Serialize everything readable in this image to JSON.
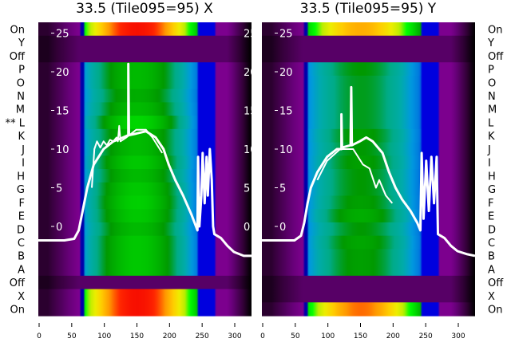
{
  "colors": {
    "line": "#ffffff",
    "background": "#ffffff",
    "text": "#000000"
  },
  "chart_data": [
    {
      "type": "heatmap",
      "title": "33.5 (Tile095=95) X",
      "row_labels_side": "left",
      "x_ticks": [
        0,
        50,
        100,
        150,
        200,
        250,
        300
      ],
      "xlim": [
        0,
        327
      ],
      "inner_y_ticks": [
        0,
        5,
        10,
        15,
        20,
        25
      ],
      "inner_ylim": [
        -11.5,
        26.5
      ],
      "rows": [
        {
          "label": "On",
          "peak": 0.88
        },
        {
          "label": "Y",
          "peak": 0
        },
        {
          "label": "Off",
          "peak": 0
        },
        {
          "label": "P",
          "peak": 0.5
        },
        {
          "label": "O",
          "peak": 0.5
        },
        {
          "label": "N",
          "peak": 0.48
        },
        {
          "label": "M",
          "peak": 0.5
        },
        {
          "label": "** L",
          "peak": 0.54
        },
        {
          "label": "K",
          "peak": 0.5
        },
        {
          "label": "J",
          "peak": 0.5
        },
        {
          "label": "I",
          "peak": 0.52
        },
        {
          "label": "H",
          "peak": 0.5
        },
        {
          "label": "G",
          "peak": 0.52
        },
        {
          "label": "F",
          "peak": 0.53
        },
        {
          "label": "E",
          "peak": 0.52
        },
        {
          "label": "D",
          "peak": 0.5
        },
        {
          "label": "C",
          "peak": 0.52
        },
        {
          "label": "B",
          "peak": 0.52
        },
        {
          "label": "A",
          "peak": 0.52
        },
        {
          "label": "Off",
          "peak": 0
        },
        {
          "label": "X",
          "peak": 0.88
        },
        {
          "label": "On",
          "peak": 0.88
        }
      ],
      "series": [
        {
          "name": "overlay",
          "points": [
            [
              0,
              -1.8
            ],
            [
              40,
              -1.8
            ],
            [
              55,
              -1.6
            ],
            [
              62,
              -0.5
            ],
            [
              68,
              2
            ],
            [
              75,
              5
            ],
            [
              85,
              8
            ],
            [
              100,
              10
            ],
            [
              115,
              11
            ],
            [
              130,
              11.5
            ],
            [
              138,
              11.8
            ],
            [
              138,
              21
            ],
            [
              139,
              11.8
            ],
            [
              150,
              12
            ],
            [
              165,
              12.3
            ],
            [
              180,
              11.5
            ],
            [
              192,
              10
            ],
            [
              200,
              8
            ],
            [
              210,
              6
            ],
            [
              222,
              4
            ],
            [
              235,
              1.5
            ],
            [
              244,
              -0.5
            ],
            [
              245,
              9
            ],
            [
              247,
              0
            ],
            [
              250,
              4
            ],
            [
              252,
              9.5
            ],
            [
              255,
              3
            ],
            [
              258,
              9
            ],
            [
              260,
              4
            ],
            [
              263,
              10
            ],
            [
              266,
              6
            ],
            [
              268,
              0
            ],
            [
              270,
              -1
            ],
            [
              280,
              -1.5
            ],
            [
              290,
              -2.5
            ],
            [
              300,
              -3.3
            ],
            [
              315,
              -3.8
            ],
            [
              327,
              -3.8
            ]
          ]
        },
        {
          "name": "overlay-2",
          "points": [
            [
              82,
              5
            ],
            [
              86,
              10
            ],
            [
              90,
              11
            ],
            [
              95,
              10.2
            ],
            [
              100,
              11
            ],
            [
              105,
              10.5
            ],
            [
              110,
              11.2
            ],
            [
              115,
              11
            ],
            [
              120,
              11.5
            ],
            [
              122,
              11
            ],
            [
              124,
              13
            ],
            [
              126,
              11
            ],
            [
              135,
              11.5
            ],
            [
              150,
              12.5
            ],
            [
              165,
              12.5
            ],
            [
              175,
              11.5
            ],
            [
              190,
              9.5
            ]
          ]
        }
      ]
    },
    {
      "type": "heatmap",
      "title": "33.5 (Tile095=95) Y",
      "row_labels_side": "right",
      "x_ticks": [
        0,
        50,
        100,
        150,
        200,
        250,
        300
      ],
      "xlim": [
        0,
        327
      ],
      "inner_y_ticks": [
        0,
        5,
        10,
        15,
        20,
        25
      ],
      "inner_ylim": [
        -11.5,
        26.5
      ],
      "rows": [
        {
          "label": "On",
          "peak": 0.78
        },
        {
          "label": "Y",
          "peak": 0
        },
        {
          "label": "Off",
          "peak": 0
        },
        {
          "label": "P",
          "peak": 0.45
        },
        {
          "label": "O",
          "peak": 0.44
        },
        {
          "label": "N",
          "peak": 0.44
        },
        {
          "label": "M",
          "peak": 0.44
        },
        {
          "label": "L",
          "peak": 0.44
        },
        {
          "label": "K",
          "peak": 0.46
        },
        {
          "label": "J",
          "peak": 0.45
        },
        {
          "label": "I",
          "peak": 0.46
        },
        {
          "label": "H",
          "peak": 0.45
        },
        {
          "label": "G",
          "peak": 0.45
        },
        {
          "label": "F",
          "peak": 0.46
        },
        {
          "label": "E",
          "peak": 0.48
        },
        {
          "label": "D",
          "peak": 0.45
        },
        {
          "label": "C",
          "peak": 0.47
        },
        {
          "label": "B",
          "peak": 0.46
        },
        {
          "label": "A",
          "peak": 0.46
        },
        {
          "label": "Off",
          "peak": 0
        },
        {
          "label": "X",
          "peak": 0
        },
        {
          "label": "On",
          "peak": 0.82
        }
      ],
      "series": [
        {
          "name": "overlay",
          "points": [
            [
              0,
              -1.8
            ],
            [
              50,
              -1.8
            ],
            [
              60,
              -1.2
            ],
            [
              65,
              0.5
            ],
            [
              70,
              3
            ],
            [
              75,
              5
            ],
            [
              85,
              7
            ],
            [
              100,
              9
            ],
            [
              115,
              10
            ],
            [
              122,
              10
            ],
            [
              122,
              14.5
            ],
            [
              123,
              10.2
            ],
            [
              136,
              10.5
            ],
            [
              137,
              18
            ],
            [
              138,
              10.5
            ],
            [
              150,
              11
            ],
            [
              160,
              11.5
            ],
            [
              170,
              11
            ],
            [
              185,
              9.5
            ],
            [
              195,
              7
            ],
            [
              205,
              5
            ],
            [
              215,
              3.5
            ],
            [
              228,
              2
            ],
            [
              238,
              0.5
            ],
            [
              243,
              -0.5
            ],
            [
              245,
              9.5
            ],
            [
              248,
              1
            ],
            [
              252,
              8.5
            ],
            [
              256,
              2
            ],
            [
              260,
              9
            ],
            [
              264,
              3
            ],
            [
              268,
              9
            ],
            [
              270,
              -1
            ],
            [
              280,
              -1.5
            ],
            [
              290,
              -2.5
            ],
            [
              300,
              -3.2
            ],
            [
              315,
              -3.6
            ],
            [
              327,
              -3.8
            ]
          ]
        },
        {
          "name": "overlay-2",
          "points": [
            [
              85,
              6
            ],
            [
              100,
              8.5
            ],
            [
              120,
              10
            ],
            [
              140,
              10
            ],
            [
              155,
              8
            ],
            [
              165,
              7.5
            ],
            [
              175,
              5
            ],
            [
              180,
              6
            ],
            [
              190,
              4
            ],
            [
              200,
              3
            ]
          ]
        }
      ]
    }
  ]
}
